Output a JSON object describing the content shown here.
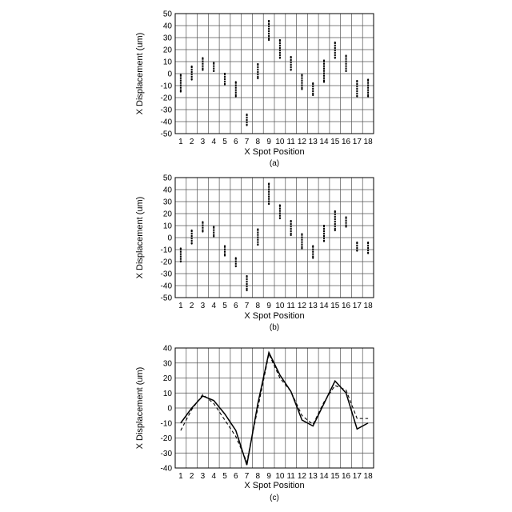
{
  "chart_data": [
    {
      "type": "scatter",
      "caption": "(a)",
      "xlabel": "X Spot Position",
      "ylabel": "X Displacement (um)",
      "ylim": [
        -50,
        50
      ],
      "yticks": [
        50,
        40,
        30,
        20,
        10,
        0,
        -10,
        -20,
        -30,
        -40,
        -50
      ],
      "categories": [
        "1",
        "2",
        "3",
        "4",
        "5",
        "6",
        "7",
        "8",
        "9",
        "10",
        "11",
        "12",
        "13",
        "14",
        "15",
        "16",
        "17",
        "18"
      ],
      "grid": true,
      "ranges": [
        [
          -15,
          -1
        ],
        [
          -5,
          6
        ],
        [
          3,
          13
        ],
        [
          2,
          9
        ],
        [
          -9,
          0
        ],
        [
          -19,
          -7
        ],
        [
          -43,
          -34
        ],
        [
          -4,
          8
        ],
        [
          28,
          44
        ],
        [
          13,
          28
        ],
        [
          3,
          14
        ],
        [
          -13,
          -1
        ],
        [
          -18,
          -8
        ],
        [
          -7,
          11
        ],
        [
          13,
          26
        ],
        [
          2,
          15
        ],
        [
          -19,
          -6
        ],
        [
          -19,
          -5
        ]
      ]
    },
    {
      "type": "scatter",
      "caption": "(b)",
      "xlabel": "X Spot Position",
      "ylabel": "X Displacement (um)",
      "ylim": [
        -50,
        50
      ],
      "yticks": [
        50,
        40,
        30,
        20,
        10,
        0,
        -10,
        -20,
        -30,
        -40,
        -50
      ],
      "categories": [
        "1",
        "2",
        "3",
        "4",
        "5",
        "6",
        "7",
        "8",
        "9",
        "10",
        "11",
        "12",
        "13",
        "14",
        "15",
        "16",
        "17",
        "18"
      ],
      "grid": true,
      "ranges": [
        [
          -20,
          -9
        ],
        [
          -5,
          6
        ],
        [
          5,
          13
        ],
        [
          1,
          9
        ],
        [
          -15,
          -7
        ],
        [
          -24,
          -17
        ],
        [
          -44,
          -32
        ],
        [
          -6,
          7
        ],
        [
          28,
          45
        ],
        [
          16,
          27
        ],
        [
          2,
          14
        ],
        [
          -9,
          3
        ],
        [
          -17,
          -7
        ],
        [
          -3,
          10
        ],
        [
          6,
          22
        ],
        [
          9,
          17
        ],
        [
          -11,
          -4
        ],
        [
          -13,
          -4
        ]
      ]
    },
    {
      "type": "line",
      "caption": "(c)",
      "xlabel": "X Spot Position",
      "ylabel": "X Displacement (um)",
      "ylim": [
        -40,
        40
      ],
      "yticks": [
        40,
        30,
        20,
        10,
        0,
        -10,
        -20,
        -30,
        -40
      ],
      "categories": [
        "1",
        "2",
        "3",
        "4",
        "5",
        "6",
        "7",
        "8",
        "9",
        "10",
        "11",
        "12",
        "13",
        "14",
        "15",
        "16",
        "17",
        "18"
      ],
      "grid": true,
      "series": [
        {
          "style": "solid",
          "values": [
            -10,
            0,
            8,
            5,
            -4,
            -15,
            -38,
            3,
            37,
            22,
            11,
            -8,
            -12,
            3,
            18,
            10,
            -14,
            -10
          ]
        },
        {
          "style": "dashed",
          "values": [
            -15,
            -1,
            9,
            3,
            -8,
            -19,
            -36,
            0,
            36,
            20,
            11,
            -5,
            -11,
            4,
            15,
            12,
            -7,
            -7
          ]
        }
      ]
    }
  ]
}
